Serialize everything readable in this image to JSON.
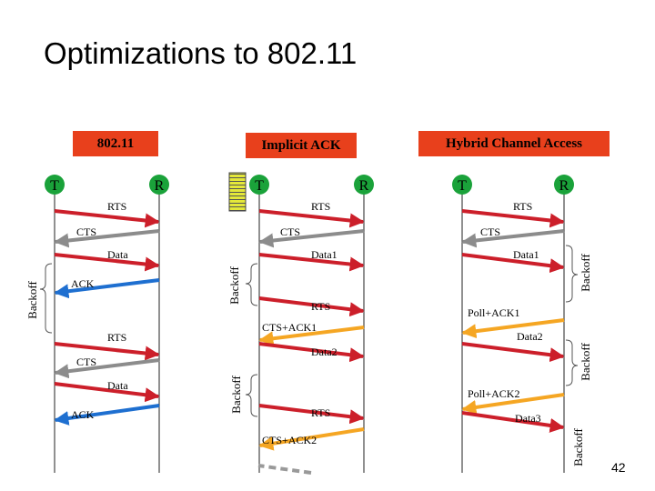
{
  "title": "Optimizations to 802.11",
  "page_number": "42",
  "colors": {
    "red": "#cc1f2a",
    "grey": "#8c8c8c",
    "blue": "#1e6fd0",
    "orange": "#f5a623",
    "header_fill": "#e8401c",
    "backoff_stripe": "#e4e83a"
  },
  "panels": {
    "p80211": {
      "header": "802.11",
      "node_t": "T",
      "node_r": "R",
      "messages": {
        "rts1": "RTS",
        "cts1": "CTS",
        "data1": "Data",
        "ack1": "ACK",
        "rts2": "RTS",
        "cts2": "CTS",
        "data2": "Data",
        "ack2": "ACK"
      },
      "backoff": "Backoff"
    },
    "implicit": {
      "header": "Implicit ACK",
      "node_t": "T",
      "node_r": "R",
      "messages": {
        "rts1": "RTS",
        "cts1": "CTS",
        "data1": "Data1",
        "rts2": "RTS",
        "ctsack1": "CTS+ACK1",
        "data2": "Data2",
        "rts3": "RTS",
        "ctsack2": "CTS+ACK2"
      },
      "backoff1": "Backoff",
      "backoff2": "Backoff"
    },
    "hybrid": {
      "header": "Hybrid Channel Access",
      "node_t": "T",
      "node_r": "R",
      "messages": {
        "rts": "RTS",
        "cts": "CTS",
        "data1": "Data1",
        "poll1": "Poll+ACK1",
        "data2": "Data2",
        "poll2": "Poll+ACK2",
        "data3": "Data3"
      },
      "backoff1": "Backoff",
      "backoff2": "Backoff",
      "backoff3": "Backoff"
    }
  }
}
